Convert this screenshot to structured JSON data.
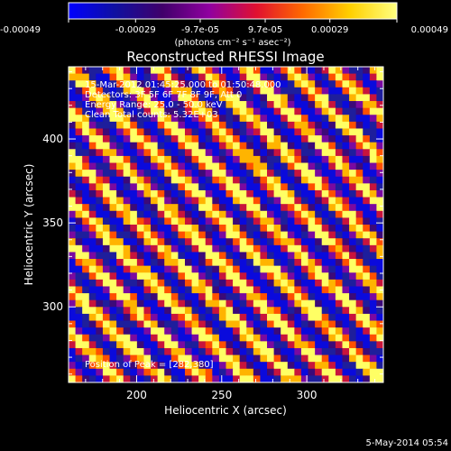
{
  "chart_data": {
    "type": "heatmap",
    "title": "Reconstructed RHESSI Image",
    "xlabel": "Heliocentric X (arcsec)",
    "ylabel": "Heliocentric Y (arcsec)",
    "xlim": [
      160,
      345
    ],
    "ylim": [
      255,
      443
    ],
    "x_ticks": [
      200,
      250,
      300
    ],
    "y_ticks": [
      300,
      350,
      400
    ],
    "x_tick_labels": [
      "200",
      "250",
      "300"
    ],
    "y_tick_labels": [
      "300",
      "350",
      "400"
    ],
    "colorbar": {
      "range": [
        -0.00049,
        0.00049
      ],
      "tick_values": [
        -0.00049,
        -0.00029,
        -9.7e-05,
        9.7e-05,
        0.00029,
        0.00049
      ],
      "tick_labels": [
        "-0.00049",
        "-0.00029",
        "-9.7e-05",
        "9.7e-05",
        "0.00029",
        "0.00049"
      ],
      "units": "(photons cm⁻² s⁻¹ asec⁻²)",
      "stops": [
        "#0000ff",
        "#1010a0",
        "#40006a",
        "#9000a0",
        "#e01030",
        "#ff6a00",
        "#ffd000",
        "#ffff80"
      ]
    },
    "annotations": [
      "15-Mar-2012 01:45:25.000 to 01:50:48.000",
      "Detectors: 3F 5F 6F 7F 8F 9F, Att 0",
      "Energy Range: 25.0 - 50.0 keV",
      "Clean    Total counts: 5.32E+03"
    ],
    "peak_label": "Position of Peak = [282,380]",
    "peak_position": [
      282,
      380
    ],
    "stripe_pattern": {
      "direction": "diagonal",
      "period_arcsec": 23,
      "grid_cells": 46
    }
  },
  "footer": {
    "date": "5-May-2014 05:54"
  }
}
